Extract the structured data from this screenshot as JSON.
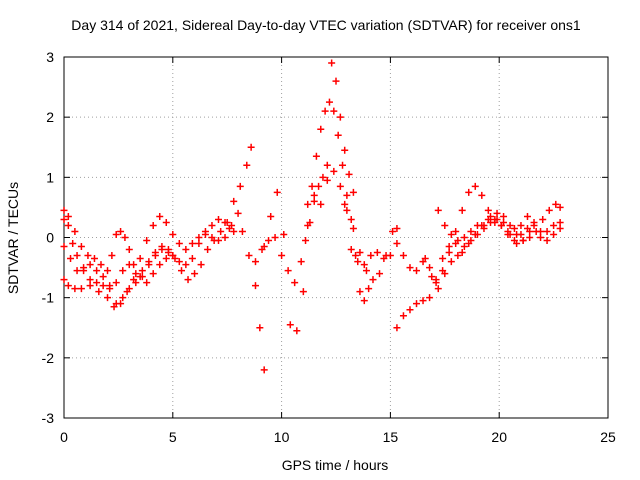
{
  "chart_data": {
    "type": "scatter",
    "marker": "plus",
    "title": "Day 314 of 2021, Sidereal Day-to-day VTEC variation (SDTVAR) for receiver ons1",
    "xlabel": "GPS time / hours",
    "ylabel": "SDTVAR / TECUs",
    "xlim": [
      0,
      25
    ],
    "ylim": [
      -3,
      3
    ],
    "xticks": [
      "0",
      "5",
      "10",
      "15",
      "20",
      "25"
    ],
    "yticks": [
      "-3",
      "-2",
      "-1",
      "0",
      "1",
      "2",
      "3"
    ],
    "grid": true,
    "series": [
      {
        "name": "SDTVAR",
        "color": "#ff0000",
        "traces": [
          {
            "x": [
              0.0,
              0.2,
              0.4,
              0.6,
              0.9,
              1.2,
              1.5,
              1.8,
              2.1,
              2.4,
              2.7,
              3.0,
              3.3,
              3.6,
              3.9,
              4.2,
              4.5,
              4.8,
              5.0,
              5.3,
              5.6,
              5.9,
              6.2,
              6.5,
              6.8,
              7.1,
              7.4,
              7.7,
              8.0,
              8.2,
              8.5,
              8.8,
              9.0,
              9.2
            ],
            "y": [
              0.3,
              0.2,
              -0.1,
              -0.3,
              -0.55,
              -0.7,
              -0.75,
              -0.8,
              -0.8,
              -0.75,
              -0.55,
              -0.45,
              -0.6,
              -0.65,
              -0.45,
              -0.25,
              -0.15,
              -0.2,
              -0.3,
              -0.4,
              -0.45,
              -0.35,
              -0.1,
              0.05,
              0.0,
              -0.05,
              0.0,
              0.2,
              0.4,
              0.1,
              -0.3,
              -0.8,
              -1.5,
              -2.2
            ]
          },
          {
            "x": [
              0.0,
              0.3,
              0.6,
              0.9,
              1.2,
              1.5,
              1.8,
              2.1,
              2.4,
              2.7,
              3.0,
              3.3,
              3.6,
              3.9,
              4.2,
              4.5,
              4.8,
              5.1,
              5.4,
              5.7,
              6.0,
              6.3,
              6.6,
              6.9,
              7.2,
              7.5,
              7.8,
              8.1,
              8.4,
              8.6
            ],
            "y": [
              -0.15,
              -0.35,
              -0.55,
              -0.5,
              -0.45,
              -0.55,
              -0.65,
              -0.85,
              -1.1,
              -1.0,
              -0.85,
              -0.75,
              -0.55,
              -0.4,
              -0.3,
              -0.2,
              -0.25,
              -0.35,
              -0.55,
              -0.7,
              -0.6,
              -0.45,
              -0.2,
              -0.05,
              0.1,
              0.25,
              0.6,
              0.85,
              1.2,
              1.5
            ]
          },
          {
            "x": [
              0.0,
              0.2,
              0.5,
              0.8,
              1.2,
              1.6,
              2.0,
              2.3,
              2.6,
              2.9,
              3.2,
              3.5,
              3.8,
              4.1,
              4.4,
              4.7,
              5.0,
              5.3,
              5.6,
              5.9,
              6.2,
              6.5,
              6.8,
              7.1,
              7.4,
              7.6,
              7.8
            ],
            "y": [
              -0.7,
              -0.8,
              -0.85,
              -0.85,
              -0.8,
              -0.9,
              -1.0,
              -1.15,
              -1.1,
              -0.9,
              -0.7,
              -0.35,
              -0.05,
              0.2,
              0.35,
              0.25,
              0.05,
              -0.1,
              -0.2,
              -0.1,
              0.0,
              0.1,
              0.2,
              0.3,
              0.25,
              0.15,
              0.1
            ]
          },
          {
            "x": [
              0.0,
              0.2,
              0.5,
              0.8,
              1.1,
              1.4,
              1.7,
              2.0,
              2.2,
              2.4,
              2.6,
              2.8,
              3.0,
              3.2,
              3.5,
              3.8,
              4.1,
              4.4,
              4.7,
              5.0
            ],
            "y": [
              0.45,
              0.35,
              0.1,
              -0.15,
              -0.3,
              -0.35,
              -0.45,
              -0.55,
              -0.3,
              0.05,
              0.1,
              0.0,
              -0.2,
              -0.45,
              -0.65,
              -0.75,
              -0.6,
              -0.45,
              -0.35,
              -0.3
            ]
          },
          {
            "x": [
              8.8,
              9.1,
              9.4,
              9.7,
              10.0,
              10.3,
              10.6,
              10.9,
              11.1,
              11.3,
              11.5,
              11.7,
              11.9,
              12.1,
              12.3,
              12.5,
              12.7,
              12.9,
              13.1,
              13.3
            ],
            "y": [
              -0.4,
              -0.2,
              -0.05,
              0.0,
              -0.3,
              -0.55,
              -0.75,
              -0.4,
              -0.05,
              0.25,
              0.6,
              0.85,
              1.0,
              1.2,
              2.9,
              2.6,
              2.0,
              1.45,
              1.05,
              0.75
            ]
          },
          {
            "x": [
              9.2,
              9.5,
              9.8,
              10.1,
              10.4,
              10.7,
              11.0,
              11.2,
              11.4,
              11.6,
              11.8,
              12.0,
              12.2,
              12.4,
              12.6,
              12.8,
              13.0,
              13.2,
              13.4,
              13.6,
              13.8,
              14.0
            ],
            "y": [
              -0.15,
              0.35,
              0.75,
              0.05,
              -1.45,
              -1.55,
              -0.9,
              0.2,
              0.85,
              1.35,
              1.8,
              2.1,
              2.25,
              2.1,
              1.7,
              1.2,
              0.7,
              0.3,
              -0.3,
              -0.9,
              -1.05,
              -0.85
            ]
          },
          {
            "x": [
              11.2,
              11.5,
              11.8,
              12.1,
              12.4,
              12.7,
              13.0,
              13.3,
              13.6,
              13.9,
              14.2,
              14.5,
              14.8,
              15.1,
              15.3
            ],
            "y": [
              0.55,
              0.7,
              0.55,
              0.95,
              1.1,
              0.85,
              0.45,
              0.15,
              -0.25,
              -0.55,
              -0.7,
              -0.6,
              -0.3,
              0.1,
              0.15
            ]
          },
          {
            "x": [
              12.9,
              13.2,
              13.5,
              13.8,
              14.1,
              14.4,
              14.7,
              15.0,
              15.3,
              15.6,
              15.9,
              16.2,
              16.5,
              16.8,
              17.1,
              17.4,
              17.7,
              18.0,
              18.3,
              18.6,
              18.9,
              19.2,
              19.5,
              19.8,
              20.1,
              20.4,
              20.7,
              21.0,
              21.3,
              21.6,
              21.9,
              22.2,
              22.5,
              22.8
            ],
            "y": [
              0.55,
              -0.2,
              -0.4,
              -0.45,
              -0.3,
              -0.25,
              -0.35,
              -0.3,
              -0.1,
              -0.3,
              -0.5,
              -0.55,
              -0.4,
              -0.5,
              -0.7,
              -0.35,
              -0.15,
              -0.1,
              -0.25,
              -0.1,
              0.05,
              0.2,
              0.3,
              0.25,
              0.2,
              0.1,
              0.15,
              0.2,
              0.35,
              0.25,
              0.0,
              0.1,
              0.2,
              0.15
            ]
          },
          {
            "x": [
              15.3,
              15.6,
              15.9,
              16.2,
              16.5,
              16.8,
              17.1,
              17.4,
              17.7,
              18.0,
              18.3,
              18.6,
              18.9,
              19.2,
              19.5,
              19.8,
              20.1,
              20.4,
              20.7,
              21.0,
              21.3,
              21.6,
              21.9,
              22.2,
              22.5,
              22.8
            ],
            "y": [
              -1.5,
              -1.3,
              -1.2,
              -1.1,
              -1.05,
              -1.0,
              -0.75,
              -0.55,
              -0.25,
              0.1,
              0.45,
              0.75,
              0.85,
              0.7,
              0.45,
              0.3,
              0.2,
              0.05,
              -0.05,
              0.05,
              0.15,
              0.2,
              0.1,
              -0.05,
              0.05,
              0.25
            ]
          },
          {
            "x": [
              16.6,
              16.9,
              17.2,
              17.5,
              17.8,
              18.1,
              18.4,
              18.7,
              19.0,
              19.3,
              19.6,
              19.9,
              20.2,
              20.5,
              20.8,
              21.1,
              21.4,
              21.7,
              22.0,
              22.3,
              22.6,
              22.8
            ],
            "y": [
              -0.35,
              -0.65,
              -0.85,
              -0.6,
              -0.4,
              -0.3,
              -0.15,
              -0.05,
              0.05,
              0.15,
              0.35,
              0.4,
              0.35,
              0.2,
              0.05,
              -0.05,
              0.0,
              0.1,
              0.3,
              0.45,
              0.55,
              0.5
            ]
          },
          {
            "x": [
              17.2,
              17.5,
              17.8,
              18.1,
              18.4,
              18.7,
              19.0,
              19.3,
              19.6,
              19.9,
              20.2,
              20.5,
              20.8,
              21.1,
              21.4
            ],
            "y": [
              0.45,
              0.2,
              0.05,
              -0.05,
              0.0,
              0.1,
              0.2,
              0.2,
              0.25,
              0.3,
              0.25,
              0.05,
              -0.1,
              -0.05,
              0.1
            ]
          }
        ]
      }
    ]
  }
}
